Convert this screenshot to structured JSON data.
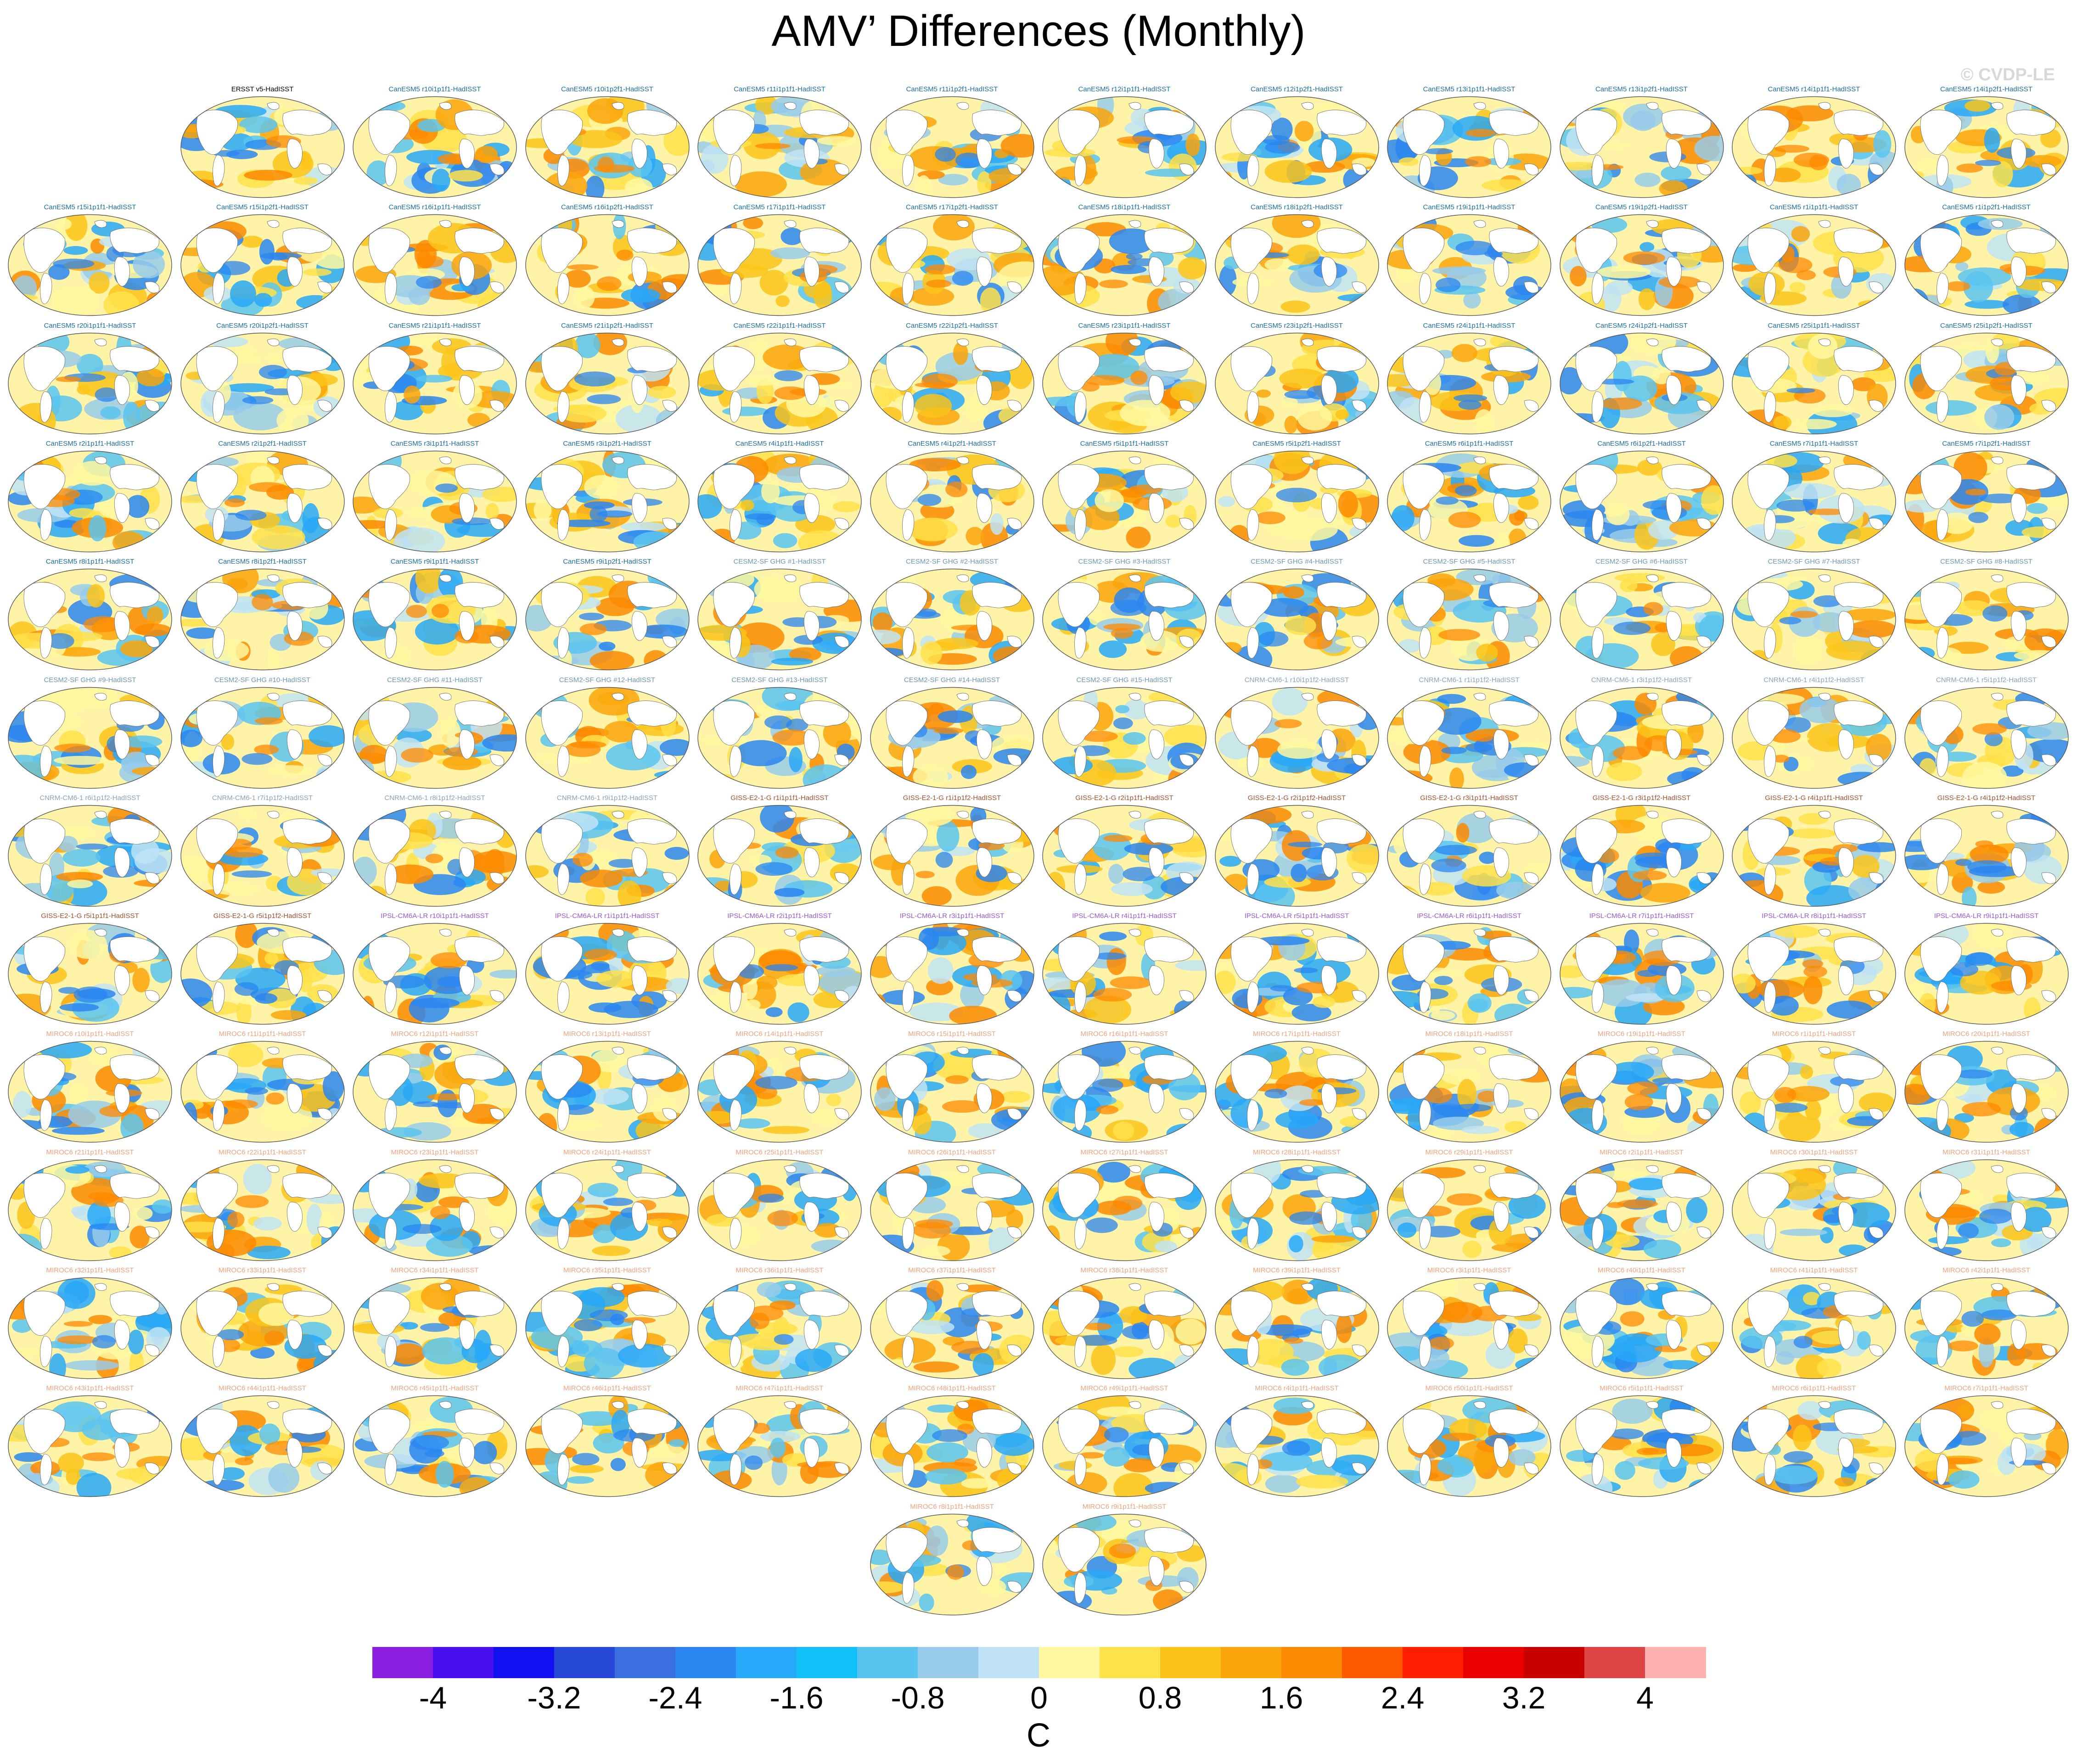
{
  "title": "AMV’ Differences (Monthly)",
  "watermark": "© CVDP-LE",
  "colors": {
    "ERSST": "#000000",
    "CanESM5": "#1a6fa0",
    "CESM2-SF": "#6f97b0",
    "CNRM": "#8ea2b5",
    "GISS": "#a0522d",
    "IPSL": "#9b59d0",
    "MIROC6": "#f0a27a"
  },
  "panels": [
    {
      "label": "ERSST v5-HadISST",
      "family": "ERSST"
    },
    {
      "label": "CanESM5 r10i1p1f1-HadISST",
      "family": "CanESM5"
    },
    {
      "label": "CanESM5 r10i1p2f1-HadISST",
      "family": "CanESM5"
    },
    {
      "label": "CanESM5 r11i1p1f1-HadISST",
      "family": "CanESM5"
    },
    {
      "label": "CanESM5 r11i1p2f1-HadISST",
      "family": "CanESM5"
    },
    {
      "label": "CanESM5 r12i1p1f1-HadISST",
      "family": "CanESM5"
    },
    {
      "label": "CanESM5 r12i1p2f1-HadISST",
      "family": "CanESM5"
    },
    {
      "label": "CanESM5 r13i1p1f1-HadISST",
      "family": "CanESM5"
    },
    {
      "label": "CanESM5 r13i1p2f1-HadISST",
      "family": "CanESM5"
    },
    {
      "label": "CanESM5 r14i1p1f1-HadISST",
      "family": "CanESM5"
    },
    {
      "label": "CanESM5 r14i1p2f1-HadISST",
      "family": "CanESM5"
    },
    {
      "label": "CanESM5 r15i1p1f1-HadISST",
      "family": "CanESM5"
    },
    {
      "label": "CanESM5 r15i1p2f1-HadISST",
      "family": "CanESM5"
    },
    {
      "label": "CanESM5 r16i1p1f1-HadISST",
      "family": "CanESM5"
    },
    {
      "label": "CanESM5 r16i1p2f1-HadISST",
      "family": "CanESM5"
    },
    {
      "label": "CanESM5 r17i1p1f1-HadISST",
      "family": "CanESM5"
    },
    {
      "label": "CanESM5 r17i1p2f1-HadISST",
      "family": "CanESM5"
    },
    {
      "label": "CanESM5 r18i1p1f1-HadISST",
      "family": "CanESM5"
    },
    {
      "label": "CanESM5 r18i1p2f1-HadISST",
      "family": "CanESM5"
    },
    {
      "label": "CanESM5 r19i1p1f1-HadISST",
      "family": "CanESM5"
    },
    {
      "label": "CanESM5 r19i1p2f1-HadISST",
      "family": "CanESM5"
    },
    {
      "label": "CanESM5 r1i1p1f1-HadISST",
      "family": "CanESM5"
    },
    {
      "label": "CanESM5 r1i1p2f1-HadISST",
      "family": "CanESM5"
    },
    {
      "label": "CanESM5 r20i1p1f1-HadISST",
      "family": "CanESM5"
    },
    {
      "label": "CanESM5 r20i1p2f1-HadISST",
      "family": "CanESM5"
    },
    {
      "label": "CanESM5 r21i1p1f1-HadISST",
      "family": "CanESM5"
    },
    {
      "label": "CanESM5 r21i1p2f1-HadISST",
      "family": "CanESM5"
    },
    {
      "label": "CanESM5 r22i1p1f1-HadISST",
      "family": "CanESM5"
    },
    {
      "label": "CanESM5 r22i1p2f1-HadISST",
      "family": "CanESM5"
    },
    {
      "label": "CanESM5 r23i1p1f1-HadISST",
      "family": "CanESM5"
    },
    {
      "label": "CanESM5 r23i1p2f1-HadISST",
      "family": "CanESM5"
    },
    {
      "label": "CanESM5 r24i1p1f1-HadISST",
      "family": "CanESM5"
    },
    {
      "label": "CanESM5 r24i1p2f1-HadISST",
      "family": "CanESM5"
    },
    {
      "label": "CanESM5 r25i1p1f1-HadISST",
      "family": "CanESM5"
    },
    {
      "label": "CanESM5 r25i1p2f1-HadISST",
      "family": "CanESM5"
    },
    {
      "label": "CanESM5 r2i1p1f1-HadISST",
      "family": "CanESM5"
    },
    {
      "label": "CanESM5 r2i1p2f1-HadISST",
      "family": "CanESM5"
    },
    {
      "label": "CanESM5 r3i1p1f1-HadISST",
      "family": "CanESM5"
    },
    {
      "label": "CanESM5 r3i1p2f1-HadISST",
      "family": "CanESM5"
    },
    {
      "label": "CanESM5 r4i1p1f1-HadISST",
      "family": "CanESM5"
    },
    {
      "label": "CanESM5 r4i1p2f1-HadISST",
      "family": "CanESM5"
    },
    {
      "label": "CanESM5 r5i1p1f1-HadISST",
      "family": "CanESM5"
    },
    {
      "label": "CanESM5 r5i1p2f1-HadISST",
      "family": "CanESM5"
    },
    {
      "label": "CanESM5 r6i1p1f1-HadISST",
      "family": "CanESM5"
    },
    {
      "label": "CanESM5 r6i1p2f1-HadISST",
      "family": "CanESM5"
    },
    {
      "label": "CanESM5 r7i1p1f1-HadISST",
      "family": "CanESM5"
    },
    {
      "label": "CanESM5 r7i1p2f1-HadISST",
      "family": "CanESM5"
    },
    {
      "label": "CanESM5 r8i1p1f1-HadISST",
      "family": "CanESM5"
    },
    {
      "label": "CanESM5 r8i1p2f1-HadISST",
      "family": "CanESM5"
    },
    {
      "label": "CanESM5 r9i1p1f1-HadISST",
      "family": "CanESM5"
    },
    {
      "label": "CanESM5 r9i1p2f1-HadISST",
      "family": "CanESM5"
    },
    {
      "label": "CESM2-SF GHG #1-HadISST",
      "family": "CESM2-SF"
    },
    {
      "label": "CESM2-SF GHG #2-HadISST",
      "family": "CESM2-SF"
    },
    {
      "label": "CESM2-SF GHG #3-HadISST",
      "family": "CESM2-SF"
    },
    {
      "label": "CESM2-SF GHG #4-HadISST",
      "family": "CESM2-SF"
    },
    {
      "label": "CESM2-SF GHG #5-HadISST",
      "family": "CESM2-SF"
    },
    {
      "label": "CESM2-SF GHG #6-HadISST",
      "family": "CESM2-SF"
    },
    {
      "label": "CESM2-SF GHG #7-HadISST",
      "family": "CESM2-SF"
    },
    {
      "label": "CESM2-SF GHG #8-HadISST",
      "family": "CESM2-SF"
    },
    {
      "label": "CESM2-SF GHG #9-HadISST",
      "family": "CESM2-SF"
    },
    {
      "label": "CESM2-SF GHG #10-HadISST",
      "family": "CESM2-SF"
    },
    {
      "label": "CESM2-SF GHG #11-HadISST",
      "family": "CESM2-SF"
    },
    {
      "label": "CESM2-SF GHG #12-HadISST",
      "family": "CESM2-SF"
    },
    {
      "label": "CESM2-SF GHG #13-HadISST",
      "family": "CESM2-SF"
    },
    {
      "label": "CESM2-SF GHG #14-HadISST",
      "family": "CESM2-SF"
    },
    {
      "label": "CESM2-SF GHG #15-HadISST",
      "family": "CESM2-SF"
    },
    {
      "label": "CNRM-CM6-1 r10i1p1f2-HadISST",
      "family": "CNRM"
    },
    {
      "label": "CNRM-CM6-1 r1i1p1f2-HadISST",
      "family": "CNRM"
    },
    {
      "label": "CNRM-CM6-1 r3i1p1f2-HadISST",
      "family": "CNRM"
    },
    {
      "label": "CNRM-CM6-1 r4i1p1f2-HadISST",
      "family": "CNRM"
    },
    {
      "label": "CNRM-CM6-1 r5i1p1f2-HadISST",
      "family": "CNRM"
    },
    {
      "label": "CNRM-CM6-1 r6i1p1f2-HadISST",
      "family": "CNRM"
    },
    {
      "label": "CNRM-CM6-1 r7i1p1f2-HadISST",
      "family": "CNRM"
    },
    {
      "label": "CNRM-CM6-1 r8i1p1f2-HadISST",
      "family": "CNRM"
    },
    {
      "label": "CNRM-CM6-1 r9i1p1f2-HadISST",
      "family": "CNRM"
    },
    {
      "label": "GISS-E2-1-G r1i1p1f1-HadISST",
      "family": "GISS"
    },
    {
      "label": "GISS-E2-1-G r1i1p1f2-HadISST",
      "family": "GISS"
    },
    {
      "label": "GISS-E2-1-G r2i1p1f1-HadISST",
      "family": "GISS"
    },
    {
      "label": "GISS-E2-1-G r2i1p1f2-HadISST",
      "family": "GISS"
    },
    {
      "label": "GISS-E2-1-G r3i1p1f1-HadISST",
      "family": "GISS"
    },
    {
      "label": "GISS-E2-1-G r3i1p1f2-HadISST",
      "family": "GISS"
    },
    {
      "label": "GISS-E2-1-G r4i1p1f1-HadISST",
      "family": "GISS"
    },
    {
      "label": "GISS-E2-1-G r4i1p1f2-HadISST",
      "family": "GISS"
    },
    {
      "label": "GISS-E2-1-G r5i1p1f1-HadISST",
      "family": "GISS"
    },
    {
      "label": "GISS-E2-1-G r5i1p1f2-HadISST",
      "family": "GISS"
    },
    {
      "label": "IPSL-CM6A-LR r10i1p1f1-HadISST",
      "family": "IPSL"
    },
    {
      "label": "IPSL-CM6A-LR r1i1p1f1-HadISST",
      "family": "IPSL"
    },
    {
      "label": "IPSL-CM6A-LR r2i1p1f1-HadISST",
      "family": "IPSL"
    },
    {
      "label": "IPSL-CM6A-LR r3i1p1f1-HadISST",
      "family": "IPSL"
    },
    {
      "label": "IPSL-CM6A-LR r4i1p1f1-HadISST",
      "family": "IPSL"
    },
    {
      "label": "IPSL-CM6A-LR r5i1p1f1-HadISST",
      "family": "IPSL"
    },
    {
      "label": "IPSL-CM6A-LR r6i1p1f1-HadISST",
      "family": "IPSL"
    },
    {
      "label": "IPSL-CM6A-LR r7i1p1f1-HadISST",
      "family": "IPSL"
    },
    {
      "label": "IPSL-CM6A-LR r8i1p1f1-HadISST",
      "family": "IPSL"
    },
    {
      "label": "IPSL-CM6A-LR r9i1p1f1-HadISST",
      "family": "IPSL"
    },
    {
      "label": "MIROC6 r10i1p1f1-HadISST",
      "family": "MIROC6"
    },
    {
      "label": "MIROC6 r11i1p1f1-HadISST",
      "family": "MIROC6"
    },
    {
      "label": "MIROC6 r12i1p1f1-HadISST",
      "family": "MIROC6"
    },
    {
      "label": "MIROC6 r13i1p1f1-HadISST",
      "family": "MIROC6"
    },
    {
      "label": "MIROC6 r14i1p1f1-HadISST",
      "family": "MIROC6"
    },
    {
      "label": "MIROC6 r15i1p1f1-HadISST",
      "family": "MIROC6"
    },
    {
      "label": "MIROC6 r16i1p1f1-HadISST",
      "family": "MIROC6"
    },
    {
      "label": "MIROC6 r17i1p1f1-HadISST",
      "family": "MIROC6"
    },
    {
      "label": "MIROC6 r18i1p1f1-HadISST",
      "family": "MIROC6"
    },
    {
      "label": "MIROC6 r19i1p1f1-HadISST",
      "family": "MIROC6"
    },
    {
      "label": "MIROC6 r1i1p1f1-HadISST",
      "family": "MIROC6"
    },
    {
      "label": "MIROC6 r20i1p1f1-HadISST",
      "family": "MIROC6"
    },
    {
      "label": "MIROC6 r21i1p1f1-HadISST",
      "family": "MIROC6"
    },
    {
      "label": "MIROC6 r22i1p1f1-HadISST",
      "family": "MIROC6"
    },
    {
      "label": "MIROC6 r23i1p1f1-HadISST",
      "family": "MIROC6"
    },
    {
      "label": "MIROC6 r24i1p1f1-HadISST",
      "family": "MIROC6"
    },
    {
      "label": "MIROC6 r25i1p1f1-HadISST",
      "family": "MIROC6"
    },
    {
      "label": "MIROC6 r26i1p1f1-HadISST",
      "family": "MIROC6"
    },
    {
      "label": "MIROC6 r27i1p1f1-HadISST",
      "family": "MIROC6"
    },
    {
      "label": "MIROC6 r28i1p1f1-HadISST",
      "family": "MIROC6"
    },
    {
      "label": "MIROC6 r29i1p1f1-HadISST",
      "family": "MIROC6"
    },
    {
      "label": "MIROC6 r2i1p1f1-HadISST",
      "family": "MIROC6"
    },
    {
      "label": "MIROC6 r30i1p1f1-HadISST",
      "family": "MIROC6"
    },
    {
      "label": "MIROC6 r31i1p1f1-HadISST",
      "family": "MIROC6"
    },
    {
      "label": "MIROC6 r32i1p1f1-HadISST",
      "family": "MIROC6"
    },
    {
      "label": "MIROC6 r33i1p1f1-HadISST",
      "family": "MIROC6"
    },
    {
      "label": "MIROC6 r34i1p1f1-HadISST",
      "family": "MIROC6"
    },
    {
      "label": "MIROC6 r35i1p1f1-HadISST",
      "family": "MIROC6"
    },
    {
      "label": "MIROC6 r36i1p1f1-HadISST",
      "family": "MIROC6"
    },
    {
      "label": "MIROC6 r37i1p1f1-HadISST",
      "family": "MIROC6"
    },
    {
      "label": "MIROC6 r38i1p1f1-HadISST",
      "family": "MIROC6"
    },
    {
      "label": "MIROC6 r39i1p1f1-HadISST",
      "family": "MIROC6"
    },
    {
      "label": "MIROC6 r3i1p1f1-HadISST",
      "family": "MIROC6"
    },
    {
      "label": "MIROC6 r40i1p1f1-HadISST",
      "family": "MIROC6"
    },
    {
      "label": "MIROC6 r41i1p1f1-HadISST",
      "family": "MIROC6"
    },
    {
      "label": "MIROC6 r42i1p1f1-HadISST",
      "family": "MIROC6"
    },
    {
      "label": "MIROC6 r43i1p1f1-HadISST",
      "family": "MIROC6"
    },
    {
      "label": "MIROC6 r44i1p1f1-HadISST",
      "family": "MIROC6"
    },
    {
      "label": "MIROC6 r45i1p1f1-HadISST",
      "family": "MIROC6"
    },
    {
      "label": "MIROC6 r46i1p1f1-HadISST",
      "family": "MIROC6"
    },
    {
      "label": "MIROC6 r47i1p1f1-HadISST",
      "family": "MIROC6"
    },
    {
      "label": "MIROC6 r48i1p1f1-HadISST",
      "family": "MIROC6"
    },
    {
      "label": "MIROC6 r49i1p1f1-HadISST",
      "family": "MIROC6"
    },
    {
      "label": "MIROC6 r4i1p1f1-HadISST",
      "family": "MIROC6"
    },
    {
      "label": "MIROC6 r50i1p1f1-HadISST",
      "family": "MIROC6"
    },
    {
      "label": "MIROC6 r5i1p1f1-HadISST",
      "family": "MIROC6"
    },
    {
      "label": "MIROC6 r6i1p1f1-HadISST",
      "family": "MIROC6"
    },
    {
      "label": "MIROC6 r7i1p1f1-HadISST",
      "family": "MIROC6"
    },
    {
      "label": "MIROC6 r8i1p1f1-HadISST",
      "family": "MIROC6"
    },
    {
      "label": "MIROC6 r9i1p1f1-HadISST",
      "family": "MIROC6"
    }
  ],
  "colorbar": {
    "unit": "C",
    "labels": [
      "-4",
      "-3.2",
      "-2.4",
      "-1.6",
      "-0.8",
      "0",
      "0.8",
      "1.6",
      "2.4",
      "3.2",
      "4"
    ],
    "colors": [
      "#8a1fe0",
      "#4a0ff0",
      "#1010f0",
      "#2848d8",
      "#3b6fe0",
      "#2a86f0",
      "#28a8f8",
      "#12c0f8",
      "#5ac4f0",
      "#98cbea",
      "#bfe3f5",
      "#fff8a0",
      "#ffe14a",
      "#fcc419",
      "#faa50a",
      "#fc8a00",
      "#ff5a00",
      "#ff1e00",
      "#eb0000",
      "#c80000",
      "#dd4444",
      "#ffb0b0"
    ]
  }
}
